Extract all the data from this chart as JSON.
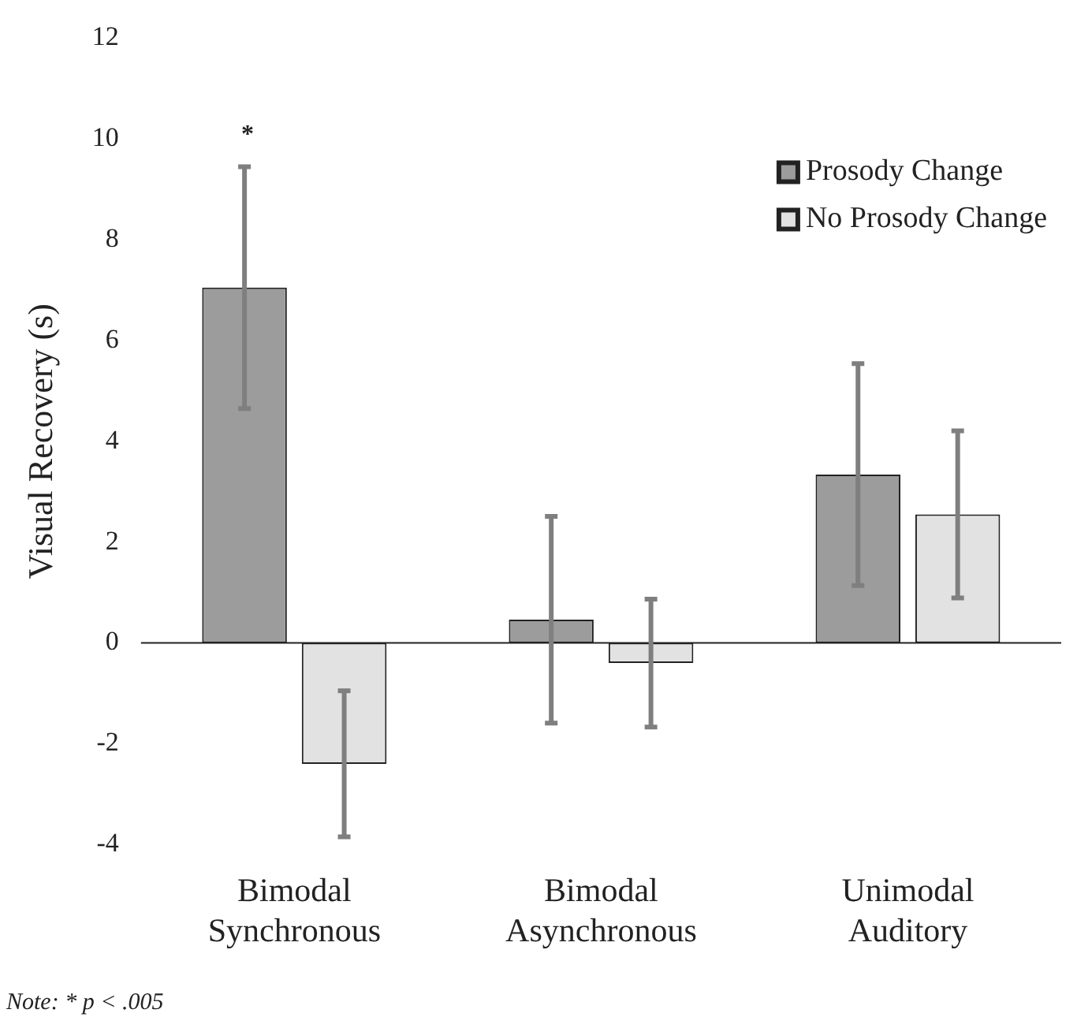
{
  "chart_data": {
    "type": "bar",
    "ylabel": "Visual Recovery (s)",
    "categories": [
      "Bimodal\nSynchronous",
      "Bimodal\nAsynchronous",
      "Unimodal\nAuditory"
    ],
    "series": [
      {
        "name": "Prosody Change",
        "color": "#9c9c9c",
        "values": [
          7.05,
          0.46,
          3.34
        ],
        "errors": [
          2.4,
          2.05,
          2.2
        ]
      },
      {
        "name": "No Prosody Change",
        "color": "#e2e2e2",
        "values": [
          -2.4,
          -0.4,
          2.55
        ],
        "errors": [
          1.45,
          1.27,
          1.66
        ]
      }
    ],
    "ylim": [
      -4,
      12
    ],
    "yticks": [
      -4,
      -2,
      0,
      2,
      4,
      6,
      8,
      10,
      12
    ],
    "grid": false,
    "legend": "top right",
    "ref_lines": [
      {
        "axis": "y",
        "value": 0,
        "color": "#222222"
      }
    ],
    "annotations": [
      "*",
      "Note: * p < .005"
    ]
  }
}
